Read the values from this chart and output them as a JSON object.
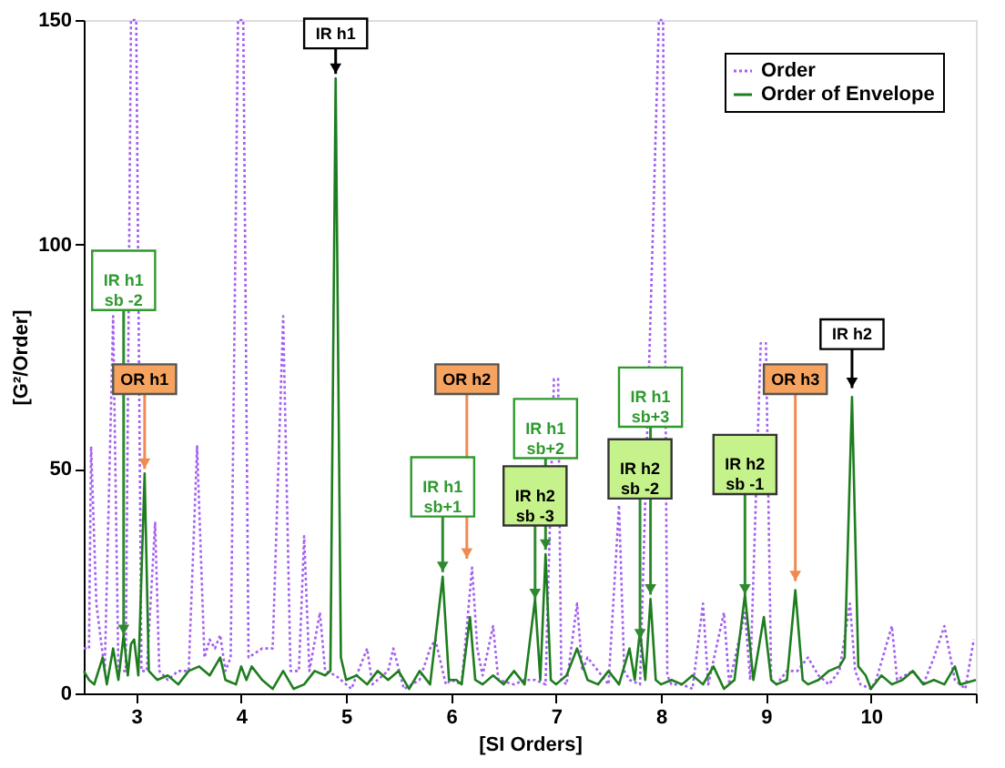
{
  "chart_data": {
    "type": "line",
    "xlabel": "[SI Orders]",
    "ylabel": "[G²/Order]",
    "xlim": [
      2.5,
      11
    ],
    "xticks": [
      3,
      4,
      5,
      6,
      7,
      8,
      9,
      10,
      {
        "value": 11,
        "label": null
      }
    ],
    "ylim": [
      0,
      150
    ],
    "yticks": [
      0,
      50,
      100,
      150
    ],
    "grid": false,
    "legend": "top right",
    "series": [
      {
        "name": "Order",
        "color": "#a35ff0",
        "line_style": "dotted",
        "x": [
          2.5,
          2.55,
          2.57,
          2.62,
          2.7,
          2.78,
          2.83,
          2.9,
          2.95,
          3.0,
          3.05,
          3.1,
          3.18,
          3.22,
          3.3,
          3.4,
          3.5,
          3.58,
          3.65,
          3.7,
          3.75,
          3.8,
          3.85,
          3.9,
          3.97,
          4.02,
          4.07,
          4.2,
          4.3,
          4.4,
          4.47,
          4.55,
          4.6,
          4.65,
          4.75,
          4.8,
          4.9,
          5.0,
          5.05,
          5.2,
          5.25,
          5.4,
          5.45,
          5.55,
          5.7,
          5.8,
          5.85,
          5.95,
          6.0,
          6.1,
          6.2,
          6.25,
          6.3,
          6.4,
          6.45,
          6.6,
          6.7,
          6.8,
          6.9,
          6.98,
          7.02,
          7.05,
          7.1,
          7.2,
          7.25,
          7.3,
          7.4,
          7.5,
          7.6,
          7.65,
          7.7,
          7.8,
          7.98,
          8.02,
          8.06,
          8.1,
          8.2,
          8.3,
          8.4,
          8.45,
          8.6,
          8.65,
          8.8,
          8.85,
          8.95,
          9.0,
          9.05,
          9.1,
          9.2,
          9.3,
          9.4,
          9.5,
          9.6,
          9.7,
          9.8,
          9.85,
          9.9,
          10.0,
          10.05,
          10.2,
          10.25,
          10.4,
          10.5,
          10.6,
          10.7,
          10.75,
          10.8,
          10.9,
          10.98
        ],
        "values": [
          10,
          10,
          55,
          20,
          5,
          84,
          5,
          5,
          150,
          150,
          5,
          5,
          38,
          5,
          3,
          5,
          5,
          55,
          8,
          12,
          10,
          13,
          5,
          8,
          150,
          150,
          8,
          10,
          10,
          84,
          5,
          5,
          35,
          5,
          18,
          5,
          4,
          2,
          1,
          10,
          2,
          5,
          10,
          1,
          3,
          10,
          12,
          2,
          3,
          2,
          28,
          10,
          4,
          15,
          3,
          2,
          3,
          3,
          2,
          70,
          70,
          3,
          2,
          20,
          5,
          8,
          5,
          2,
          42,
          5,
          3,
          2,
          150,
          150,
          4,
          2,
          2,
          1,
          20,
          2,
          18,
          2,
          18,
          3,
          78,
          78,
          3,
          2,
          5,
          5,
          8,
          4,
          2,
          5,
          20,
          5,
          2,
          1,
          3,
          15,
          3,
          5,
          2,
          8,
          15,
          9,
          3,
          1,
          12
        ]
      },
      {
        "name": "Order of Envelope",
        "color": "#1e7d1e",
        "line_style": "solid",
        "x": [
          2.5,
          2.55,
          2.6,
          2.68,
          2.72,
          2.78,
          2.83,
          2.88,
          2.92,
          2.95,
          2.98,
          3.02,
          3.08,
          3.12,
          3.2,
          3.3,
          3.4,
          3.5,
          3.6,
          3.7,
          3.8,
          3.85,
          3.95,
          4.0,
          4.05,
          4.1,
          4.2,
          4.3,
          4.4,
          4.5,
          4.6,
          4.7,
          4.8,
          4.85,
          4.9,
          4.95,
          5.0,
          5.1,
          5.2,
          5.3,
          5.4,
          5.5,
          5.6,
          5.7,
          5.8,
          5.92,
          5.98,
          6.05,
          6.1,
          6.18,
          6.23,
          6.3,
          6.4,
          6.5,
          6.6,
          6.7,
          6.8,
          6.85,
          6.9,
          6.95,
          7.0,
          7.1,
          7.2,
          7.3,
          7.4,
          7.5,
          7.6,
          7.7,
          7.75,
          7.8,
          7.85,
          7.9,
          7.95,
          8.0,
          8.1,
          8.2,
          8.3,
          8.4,
          8.5,
          8.6,
          8.7,
          8.8,
          8.88,
          8.98,
          9.05,
          9.1,
          9.2,
          9.28,
          9.35,
          9.4,
          9.5,
          9.6,
          9.7,
          9.75,
          9.82,
          9.88,
          9.95,
          10.0,
          10.1,
          10.2,
          10.3,
          10.4,
          10.5,
          10.6,
          10.7,
          10.8,
          10.85,
          11.0
        ],
        "values": [
          5,
          3,
          2,
          8,
          2,
          10,
          3,
          13,
          4,
          11,
          12,
          4,
          49,
          5,
          3,
          4,
          2,
          5,
          6,
          4,
          8,
          3,
          2,
          6,
          3,
          6,
          3,
          1,
          5,
          1,
          2,
          5,
          4,
          5,
          137,
          8,
          3,
          4,
          2,
          5,
          3,
          5,
          1,
          5,
          2,
          26,
          3,
          3,
          2,
          17,
          3,
          2,
          4,
          2,
          5,
          2,
          21,
          3,
          31,
          3,
          2,
          4,
          10,
          3,
          2,
          5,
          2,
          10,
          3,
          14,
          3,
          21,
          3,
          2,
          3,
          2,
          4,
          2,
          6,
          1,
          3,
          22,
          3,
          17,
          3,
          2,
          3,
          23,
          3,
          2,
          3,
          5,
          6,
          8,
          66,
          6,
          4,
          1,
          4,
          2,
          3,
          5,
          2,
          3,
          2,
          6,
          2,
          3
        ]
      }
    ],
    "annotations": [
      {
        "text": "IR h1",
        "x": 4.9,
        "y": 138
      },
      {
        "text": "IR h1\nsb -2",
        "x": 2.88,
        "y": 13
      },
      {
        "text": "OR h1",
        "x": 3.08,
        "y": 50
      },
      {
        "text": "OR h2",
        "x": 6.15,
        "y": 30
      },
      {
        "text": "IR h1\nsb+1",
        "x": 5.92,
        "y": 27
      },
      {
        "text": "IR h2\nsb -3",
        "x": 6.8,
        "y": 21
      },
      {
        "text": "IR h1\nsb+2",
        "x": 6.9,
        "y": 32
      },
      {
        "text": "IR h2\nsb -2",
        "x": 7.8,
        "y": 12
      },
      {
        "text": "IR h1\nsb+3",
        "x": 7.9,
        "y": 22
      },
      {
        "text": "IR h2\nsb -1",
        "x": 8.8,
        "y": 22
      },
      {
        "text": "OR h3",
        "x": 9.28,
        "y": 25
      },
      {
        "text": "IR h2",
        "x": 9.82,
        "y": 68
      }
    ]
  }
}
